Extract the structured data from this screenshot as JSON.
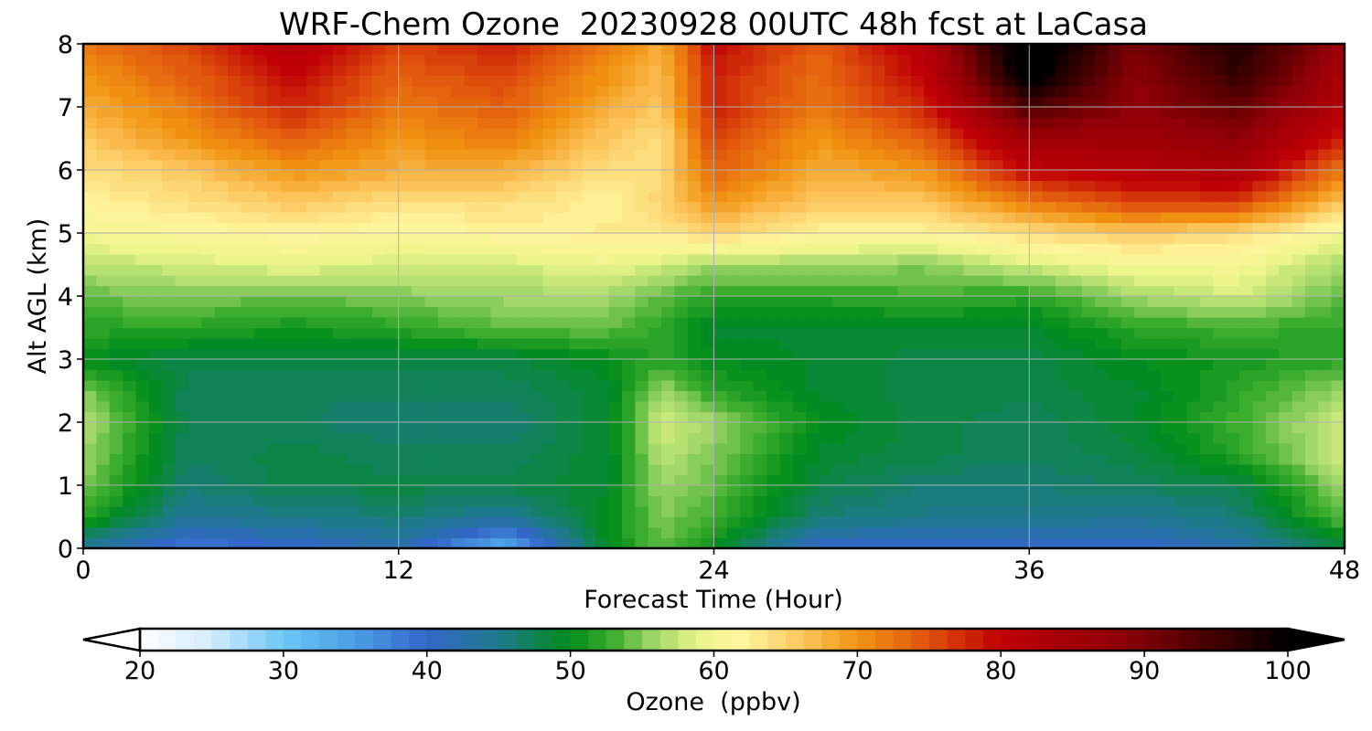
{
  "chart_data": {
    "type": "heatmap",
    "title": "WRF-Chem Ozone  20230928 00UTC 48h fcst at LaCasa",
    "xlabel": "Forecast Time (Hour)",
    "ylabel": "Alt AGL (km)",
    "xlim": [
      0,
      48
    ],
    "ylim": [
      0,
      8
    ],
    "xticks": [
      0,
      12,
      24,
      36,
      48
    ],
    "yticks": [
      0,
      1,
      2,
      3,
      4,
      5,
      6,
      7,
      8
    ],
    "grid": true,
    "x": [
      0,
      4,
      8,
      12,
      16,
      20,
      22,
      24,
      28,
      32,
      36,
      40,
      44,
      48
    ],
    "y": [
      0,
      0.5,
      1,
      1.5,
      2,
      2.5,
      3,
      3.5,
      4,
      4.5,
      5,
      5.5,
      6,
      6.5,
      7,
      7.5,
      8
    ],
    "z": [
      [
        44,
        38,
        40,
        42,
        32,
        50,
        54,
        50,
        40,
        40,
        40,
        40,
        42,
        48
      ],
      [
        52,
        44,
        45,
        46,
        44,
        50,
        55,
        53,
        46,
        45,
        45,
        44,
        46,
        54
      ],
      [
        55,
        46,
        48,
        48,
        48,
        49,
        56,
        54,
        48,
        46,
        46,
        47,
        48,
        56
      ],
      [
        56,
        47,
        48,
        47,
        47,
        49,
        57,
        55,
        49,
        48,
        47,
        48,
        52,
        58
      ],
      [
        57,
        47,
        47,
        46,
        46,
        49,
        58,
        56,
        50,
        48,
        47,
        49,
        53,
        58
      ],
      [
        55,
        47,
        47,
        47,
        47,
        49,
        56,
        52,
        49,
        48,
        48,
        49,
        52,
        56
      ],
      [
        50,
        48,
        48,
        48,
        48,
        50,
        52,
        50,
        49,
        48,
        48,
        50,
        51,
        52
      ],
      [
        52,
        52,
        51,
        52,
        54,
        54,
        52,
        49,
        49,
        49,
        49,
        52,
        53,
        52
      ],
      [
        54,
        55,
        54,
        55,
        56,
        56,
        54,
        52,
        52,
        53,
        52,
        56,
        58,
        54
      ],
      [
        57,
        58,
        59,
        58,
        58,
        59,
        58,
        56,
        56,
        55,
        58,
        60,
        60,
        56
      ],
      [
        60,
        61,
        62,
        61,
        62,
        63,
        63,
        65,
        62,
        62,
        64,
        66,
        64,
        60
      ],
      [
        62,
        64,
        66,
        64,
        64,
        62,
        65,
        70,
        66,
        66,
        72,
        76,
        76,
        66
      ],
      [
        64,
        66,
        70,
        68,
        68,
        64,
        64,
        74,
        68,
        70,
        80,
        82,
        84,
        72
      ],
      [
        66,
        70,
        74,
        70,
        72,
        66,
        64,
        76,
        70,
        74,
        86,
        86,
        88,
        78
      ],
      [
        68,
        72,
        78,
        72,
        74,
        68,
        66,
        78,
        72,
        78,
        94,
        88,
        92,
        82
      ],
      [
        70,
        74,
        80,
        74,
        76,
        70,
        67,
        78,
        73,
        80,
        102,
        88,
        96,
        84
      ],
      [
        72,
        76,
        82,
        76,
        78,
        72,
        68,
        80,
        74,
        82,
        104,
        90,
        98,
        86
      ]
    ],
    "colorbar": {
      "label": "Ozone  (ppbv)",
      "min": 20,
      "max": 100,
      "ticks": [
        20,
        30,
        40,
        50,
        60,
        70,
        80,
        90,
        100
      ],
      "extend": "both",
      "stops": [
        [
          20,
          "#ffffff"
        ],
        [
          25,
          "#d2ecfb"
        ],
        [
          30,
          "#6cc6f5"
        ],
        [
          35,
          "#4a9ee4"
        ],
        [
          40,
          "#3466c8"
        ],
        [
          45,
          "#1e7a8a"
        ],
        [
          50,
          "#008c1a"
        ],
        [
          53,
          "#40ae30"
        ],
        [
          56,
          "#a4d86a"
        ],
        [
          59,
          "#ecf58a"
        ],
        [
          62,
          "#fff59e"
        ],
        [
          66,
          "#fcc860"
        ],
        [
          70,
          "#f29414"
        ],
        [
          75,
          "#e0520c"
        ],
        [
          80,
          "#c00006"
        ],
        [
          88,
          "#900006"
        ],
        [
          95,
          "#400000"
        ],
        [
          100,
          "#000000"
        ]
      ]
    }
  }
}
